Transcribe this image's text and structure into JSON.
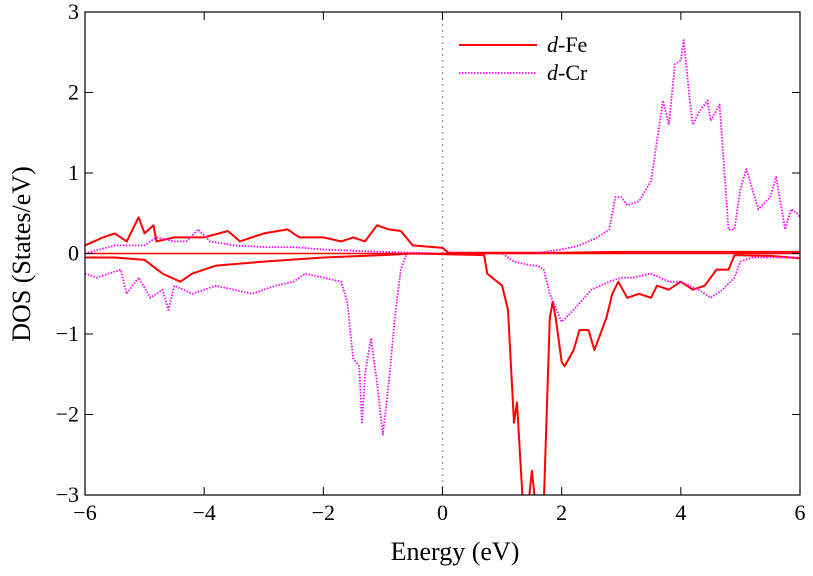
{
  "chart_data": {
    "type": "line",
    "title": "",
    "xlabel": "Energy (eV)",
    "ylabel": "DOS (States/eV)",
    "xlim": [
      -6,
      6
    ],
    "ylim": [
      -3,
      3
    ],
    "xticks": [
      -6,
      -4,
      -2,
      0,
      2,
      4,
      6
    ],
    "yticks": [
      -3,
      -2,
      -1,
      0,
      1,
      2,
      3
    ],
    "grid": false,
    "legend_position": "top-center",
    "fermi_level_line": {
      "x": 0,
      "style": "dotted",
      "color": "#999999"
    },
    "zero_line": {
      "y": 0,
      "color": "#ff0000"
    },
    "series": [
      {
        "name": "d-Fe",
        "legend_italic": "d",
        "legend_rest": "-Fe",
        "color": "#ff0000",
        "style": "solid",
        "spin": "up",
        "x": [
          -6,
          -5.7,
          -5.5,
          -5.3,
          -5.1,
          -5.0,
          -4.85,
          -4.8,
          -4.5,
          -4,
          -3.6,
          -3.4,
          -3,
          -2.6,
          -2.4,
          -2,
          -1.7,
          -1.5,
          -1.3,
          -1.1,
          -0.9,
          -0.7,
          -0.5,
          0,
          0.1,
          1,
          2,
          3,
          4,
          5,
          6
        ],
        "y": [
          0.1,
          0.2,
          0.25,
          0.15,
          0.45,
          0.25,
          0.35,
          0.15,
          0.2,
          0.2,
          0.28,
          0.15,
          0.25,
          0.3,
          0.2,
          0.2,
          0.15,
          0.2,
          0.15,
          0.35,
          0.3,
          0.28,
          0.1,
          0.07,
          0.01,
          0.01,
          0.01,
          0.02,
          0.02,
          0.02,
          0.02
        ]
      },
      {
        "name": "d-Fe",
        "color": "#ff0000",
        "style": "solid",
        "spin": "down",
        "x": [
          -6,
          -5.5,
          -5,
          -4.7,
          -4.4,
          -4.2,
          -3.8,
          -3,
          -2,
          -1,
          -0.5,
          0.7,
          0.75,
          1.0,
          1.1,
          1.2,
          1.25,
          1.3,
          1.35,
          1.45,
          1.5,
          1.55,
          1.7,
          1.8,
          1.85,
          1.9,
          2.0,
          2.05,
          2.2,
          2.3,
          2.45,
          2.55,
          2.75,
          2.85,
          2.95,
          3.1,
          3.3,
          3.5,
          3.6,
          3.8,
          4.0,
          4.2,
          4.4,
          4.6,
          4.8,
          4.9,
          5.5,
          6
        ],
        "y": [
          -0.05,
          -0.05,
          -0.08,
          -0.25,
          -0.35,
          -0.25,
          -0.15,
          -0.1,
          -0.05,
          -0.02,
          0,
          -0.02,
          -0.25,
          -0.4,
          -0.7,
          -2.1,
          -1.85,
          -2.5,
          -3.1,
          -3.05,
          -2.7,
          -3.05,
          -3.1,
          -0.8,
          -0.6,
          -0.8,
          -1.35,
          -1.4,
          -1.2,
          -0.95,
          -0.95,
          -1.2,
          -0.8,
          -0.5,
          -0.35,
          -0.55,
          -0.5,
          -0.55,
          -0.4,
          -0.45,
          -0.35,
          -0.45,
          -0.4,
          -0.2,
          -0.2,
          -0.02,
          -0.03,
          -0.06
        ]
      },
      {
        "name": "d-Cr",
        "legend_italic": "d",
        "legend_rest": "-Cr",
        "color": "#ff00ff",
        "style": "dotted",
        "spin": "up",
        "x": [
          -6,
          -5.5,
          -5,
          -4.8,
          -4.5,
          -4.3,
          -4.1,
          -3.9,
          -3.5,
          -3,
          -2.5,
          -2,
          -1,
          0,
          1.5,
          2,
          2.3,
          2.6,
          2.8,
          2.9,
          3.0,
          3.1,
          3.3,
          3.5,
          3.6,
          3.7,
          3.8,
          3.9,
          4.0,
          4.05,
          4.15,
          4.2,
          4.3,
          4.45,
          4.5,
          4.65,
          4.8,
          4.9,
          5.0,
          5.1,
          5.3,
          5.5,
          5.6,
          5.75,
          5.85,
          5.95,
          6
        ],
        "y": [
          0,
          0.1,
          0.1,
          0.2,
          0.15,
          0.15,
          0.3,
          0.15,
          0.1,
          0.08,
          0.08,
          0.05,
          0.02,
          0,
          0,
          0.05,
          0.1,
          0.2,
          0.3,
          0.7,
          0.7,
          0.6,
          0.65,
          0.9,
          1.4,
          1.9,
          1.6,
          2.35,
          2.4,
          2.65,
          1.9,
          1.6,
          1.75,
          1.9,
          1.65,
          1.85,
          0.3,
          0.3,
          0.8,
          1.05,
          0.55,
          0.7,
          0.95,
          0.3,
          0.55,
          0.5,
          0.45
        ]
      },
      {
        "name": "d-Cr",
        "color": "#ff00ff",
        "style": "dotted",
        "spin": "down",
        "x": [
          -6,
          -5.8,
          -5.6,
          -5.4,
          -5.3,
          -5.1,
          -4.9,
          -4.7,
          -4.6,
          -4.5,
          -4.2,
          -3.8,
          -3.5,
          -3.2,
          -2.8,
          -2.5,
          -2.3,
          -2.0,
          -1.7,
          -1.6,
          -1.5,
          -1.4,
          -1.35,
          -1.3,
          -1.2,
          -1.1,
          -1.0,
          -0.9,
          -0.8,
          -0.7,
          -0.6,
          0,
          1,
          1.2,
          1.5,
          1.6,
          1.7,
          1.8,
          2.0,
          2.2,
          2.5,
          2.8,
          3.0,
          3.2,
          3.5,
          3.8,
          4.0,
          4.3,
          4.5,
          4.7,
          4.9,
          5.0,
          5.2,
          6
        ],
        "y": [
          -0.25,
          -0.3,
          -0.25,
          -0.2,
          -0.5,
          -0.3,
          -0.55,
          -0.45,
          -0.7,
          -0.4,
          -0.5,
          -0.4,
          -0.45,
          -0.5,
          -0.4,
          -0.35,
          -0.25,
          -0.3,
          -0.35,
          -0.6,
          -1.3,
          -1.4,
          -2.1,
          -1.5,
          -1.05,
          -1.6,
          -2.25,
          -1.6,
          -0.8,
          -0.2,
          0,
          0,
          0,
          -0.1,
          -0.15,
          -0.15,
          -0.2,
          -0.5,
          -0.85,
          -0.7,
          -0.45,
          -0.35,
          -0.3,
          -0.3,
          -0.25,
          -0.35,
          -0.35,
          -0.45,
          -0.55,
          -0.45,
          -0.3,
          -0.1,
          -0.05,
          -0.05
        ]
      }
    ]
  }
}
